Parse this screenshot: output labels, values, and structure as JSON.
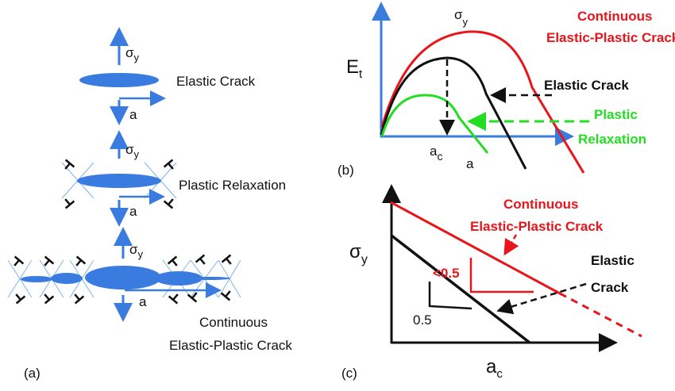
{
  "colors": {
    "crack_blue": "#3a7be0",
    "continuous_red": "#e8151b",
    "elastic_black": "#111111",
    "plastic_green": "#22dd22"
  },
  "panel_a": {
    "label": "(a)",
    "stress_symbol": "σ",
    "stress_sub": "y",
    "length_symbol": "a",
    "elastic_crack": "Elastic Crack",
    "plastic_relaxation": "Plastic Relaxation",
    "continuous_line1": "Continuous",
    "continuous_line2": "Elastic-Plastic Crack"
  },
  "panel_b": {
    "label": "(b)",
    "y_label": "E",
    "y_sub": "t",
    "x_label": "a",
    "critical_label": "a",
    "critical_sub": "c",
    "peak_label": "σ",
    "peak_sub": "y",
    "continuous_line1": "Continuous",
    "continuous_line2": "Elastic-Plastic Crack",
    "elastic_crack": "Elastic Crack",
    "plastic_line1": "Plastic",
    "plastic_line2": "Relaxation"
  },
  "panel_c": {
    "label": "(c)",
    "y_label": "σ",
    "y_sub": "y",
    "x_label": "a",
    "x_sub": "c",
    "continuous_line1": "Continuous",
    "continuous_line2": "Elastic-Plastic Crack",
    "elastic_line1": "Elastic",
    "elastic_line2": "Crack",
    "slope_continuous": "<0.5",
    "slope_elastic": "0.5"
  }
}
